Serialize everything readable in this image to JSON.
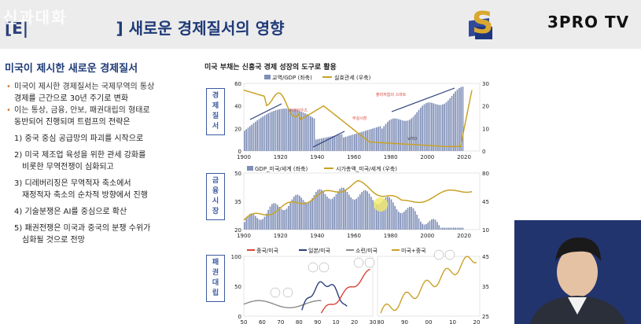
{
  "header": {
    "title_prefix": "[E|",
    "title_masked": "                ]",
    "title_main": "새로운 경제질서의 영향",
    "overlay_text": "신과대화",
    "brand": "3PRO TV"
  },
  "left": {
    "heading": "미국이 제시한 새로운 경제질서",
    "bullets": [
      "미국이 제시한 경제질서는 국제무역의 통상",
      "경제를 근간으로 30년 주기로 변화",
      "이는 통상, 금융, 안보, 패권대립의 형태로",
      "동반되어 진행되며 트럼프의 전략은"
    ],
    "items": [
      "1) 중국 중심 공급망의 파괴를 시작으로",
      "2) 미국 제조업 육성을 위한 관세 강화를",
      "비롯한 무역전쟁이 심화되고",
      "3) 디레버리징은 무역적자 축소에서",
      "재정적자 축소의 순차적 방향에서 진행",
      "4) 기술분쟁은 AI를 중심으로 확산",
      "5) 패권전쟁은 미국과 중국의 분쟁 수위가",
      "심화될 것으로 전망"
    ]
  },
  "chart_panel": {
    "heading": "미국 부채는 신흥국 경제 성장의 도구로 활용",
    "labels": [
      "경제질서",
      "금융시장",
      "패권대립"
    ]
  },
  "chart_data": [
    {
      "type": "bar",
      "legend": [
        "교역/GDP (좌축)",
        "실효관세 (우축)"
      ],
      "x_ticks": [
        "1900",
        "1920",
        "1940",
        "1960",
        "1980",
        "2000",
        "2020"
      ],
      "y_left_ticks": [
        "0",
        "20",
        "40",
        "60"
      ],
      "y_right_ticks": [
        "0",
        "10",
        "20",
        "30"
      ],
      "annotations": [
        "플라자합의 스마트",
        "부실시장",
        "브레턴우즈",
        "WTO"
      ]
    },
    {
      "type": "bar",
      "legend": [
        "GDP_미국/세계 (좌축)",
        "시가총액_미국/세계 (우축)"
      ],
      "x_ticks": [
        "1900",
        "1920",
        "1940",
        "1960",
        "1980",
        "2000",
        "2020"
      ],
      "y_left_ticks": [
        "20",
        "35",
        "50"
      ],
      "y_right_ticks": [
        "10",
        "45",
        "80"
      ]
    },
    {
      "type": "line",
      "legend": [
        "중국/미국",
        "일본/미국",
        "소련/미국",
        "미국+중국"
      ],
      "x_ticks_left": [
        "50",
        "60",
        "70",
        "80",
        "90",
        "10",
        "20",
        "30"
      ],
      "x_ticks_right": [
        "80",
        "90",
        "00",
        "10",
        "20"
      ],
      "y_left_ticks": [
        "0",
        "50",
        "100"
      ],
      "y_right_ticks": [
        "25",
        "35",
        "45"
      ]
    }
  ],
  "colors": {
    "title": "#1f3a78",
    "bar": "#7f8fb8",
    "line_gold": "#c9a227",
    "line_red": "#d9453a",
    "line_navy": "#2c3e7a",
    "line_gray": "#8a8a8a"
  }
}
